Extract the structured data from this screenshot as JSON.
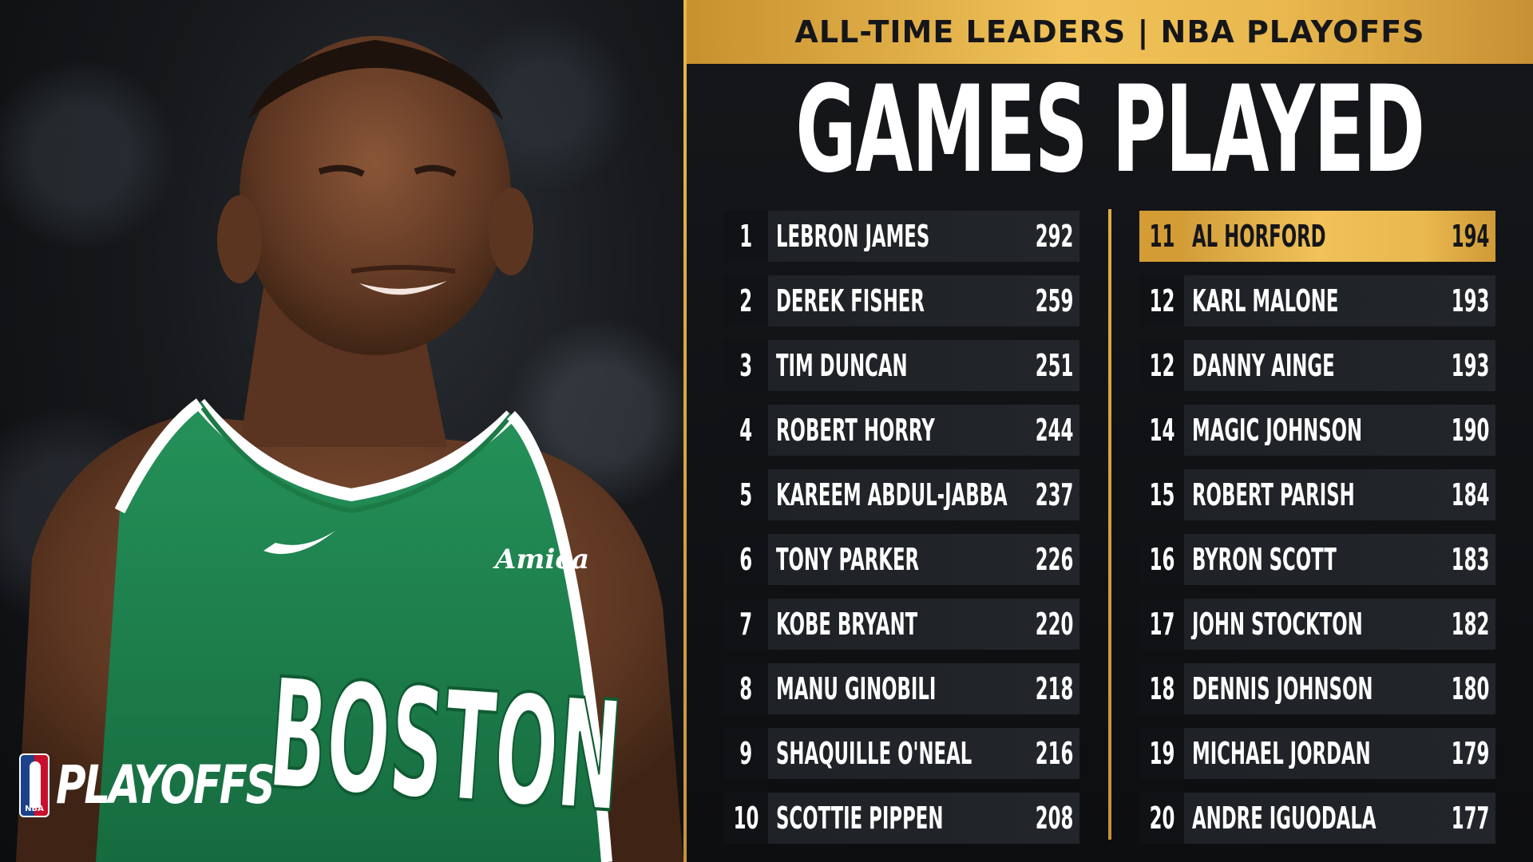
{
  "header": {
    "title": "ALL-TIME LEADERS | NBA PLAYOFFS"
  },
  "stat_title": "GAMES PLAYED",
  "brand": {
    "nba_mark": "NBA",
    "playoffs_word": "PLAYOFFS"
  },
  "jersey": {
    "team_text": "BOSTON",
    "sponsor": "Amica"
  },
  "colors": {
    "gold": "#f0c259",
    "gold_dark": "#c8912f",
    "panel": "#1e2125",
    "background": "#0d0e10",
    "celtics_green": "#1f8a4c"
  },
  "leaders": [
    {
      "rank": "1",
      "name": "LEBRON JAMES",
      "games": "292"
    },
    {
      "rank": "2",
      "name": "DEREK FISHER",
      "games": "259"
    },
    {
      "rank": "3",
      "name": "TIM DUNCAN",
      "games": "251"
    },
    {
      "rank": "4",
      "name": "ROBERT HORRY",
      "games": "244"
    },
    {
      "rank": "5",
      "name": "KAREEM ABDUL-JABBAR",
      "games": "237"
    },
    {
      "rank": "6",
      "name": "TONY PARKER",
      "games": "226"
    },
    {
      "rank": "7",
      "name": "KOBE BRYANT",
      "games": "220"
    },
    {
      "rank": "8",
      "name": "MANU GINOBILI",
      "games": "218"
    },
    {
      "rank": "9",
      "name": "SHAQUILLE O'NEAL",
      "games": "216"
    },
    {
      "rank": "10",
      "name": "SCOTTIE PIPPEN",
      "games": "208"
    },
    {
      "rank": "11",
      "name": "AL HORFORD",
      "games": "194",
      "highlight": true
    },
    {
      "rank": "12",
      "name": "KARL MALONE",
      "games": "193"
    },
    {
      "rank": "12",
      "name": "DANNY AINGE",
      "games": "193"
    },
    {
      "rank": "14",
      "name": "MAGIC JOHNSON",
      "games": "190"
    },
    {
      "rank": "15",
      "name": "ROBERT PARISH",
      "games": "184"
    },
    {
      "rank": "16",
      "name": "BYRON SCOTT",
      "games": "183"
    },
    {
      "rank": "17",
      "name": "JOHN STOCKTON",
      "games": "182"
    },
    {
      "rank": "18",
      "name": "DENNIS JOHNSON",
      "games": "180"
    },
    {
      "rank": "19",
      "name": "MICHAEL JORDAN",
      "games": "179"
    },
    {
      "rank": "20",
      "name": "ANDRE IGUODALA",
      "games": "177"
    }
  ]
}
